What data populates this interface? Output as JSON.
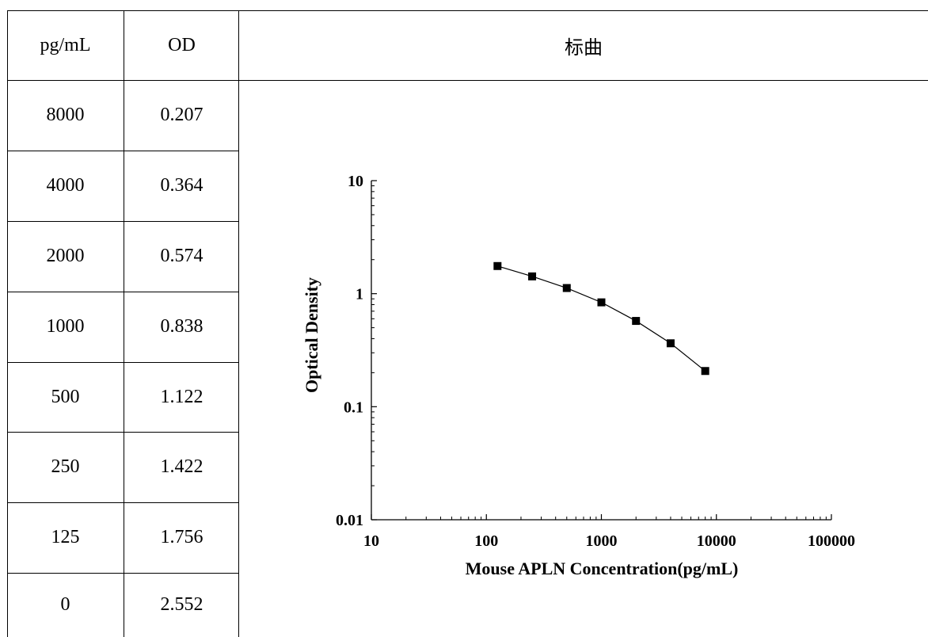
{
  "table": {
    "headers": {
      "conc": "pg/mL",
      "od": "OD",
      "curve": "标曲"
    },
    "rows": [
      {
        "conc": "8000",
        "od": "0.207"
      },
      {
        "conc": "4000",
        "od": "0.364"
      },
      {
        "conc": "2000",
        "od": "0.574"
      },
      {
        "conc": "1000",
        "od": "0.838"
      },
      {
        "conc": "500",
        "od": "1.122"
      },
      {
        "conc": "250",
        "od": "1.422"
      },
      {
        "conc": "125",
        "od": "1.756"
      },
      {
        "conc": "0",
        "od": "2.552"
      }
    ]
  },
  "chart_data": {
    "type": "scatter",
    "xlabel": "Mouse APLN Concentration(pg/mL)",
    "ylabel": "Optical Density",
    "xscale": "log",
    "yscale": "log",
    "xlim": [
      10,
      100000
    ],
    "ylim": [
      0.01,
      10
    ],
    "xticks": [
      "10",
      "100",
      "1000",
      "10000",
      "100000"
    ],
    "yticks": [
      "0.01",
      "0.1",
      "1",
      "10"
    ],
    "x": [
      125,
      250,
      500,
      1000,
      2000,
      4000,
      8000
    ],
    "y": [
      1.756,
      1.422,
      1.122,
      0.838,
      0.574,
      0.364,
      0.207
    ],
    "marker": "square",
    "line": "connected",
    "grid": false,
    "color": "#000000"
  }
}
